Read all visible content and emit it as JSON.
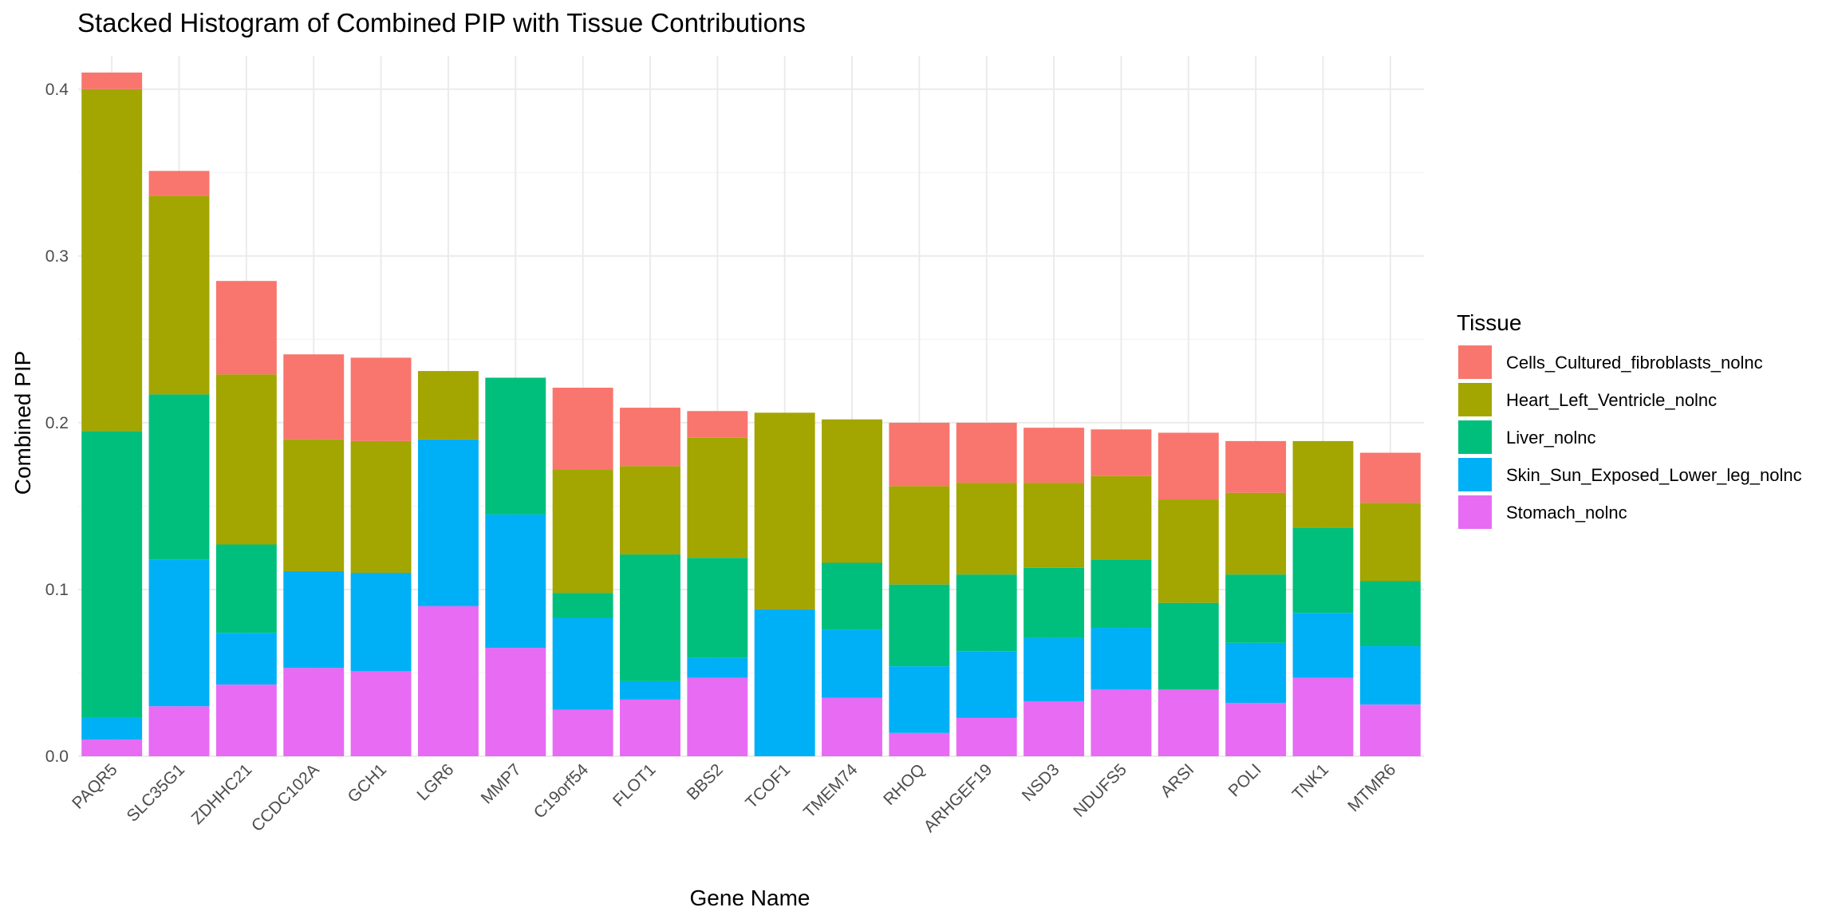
{
  "chart_data": {
    "type": "bar",
    "stacked": true,
    "title": "Stacked Histogram of Combined PIP with Tissue Contributions",
    "xlabel": "Gene Name",
    "ylabel": "Combined PIP",
    "ylim": [
      0,
      0.42
    ],
    "yticks": [
      0.0,
      0.1,
      0.2,
      0.3,
      0.4
    ],
    "ytick_labels": [
      "0.0",
      "0.1",
      "0.2",
      "0.3",
      "0.4"
    ],
    "grid": true,
    "legend": {
      "title": "Tissue",
      "placement": "right",
      "order": [
        "Cells_Cultured_fibroblasts_nolnc",
        "Heart_Left_Ventricle_nolnc",
        "Liver_nolnc",
        "Skin_Sun_Exposed_Lower_leg_nolnc",
        "Stomach_nolnc"
      ]
    },
    "categories": [
      "PAQR5",
      "SLC35G1",
      "ZDHHC21",
      "CCDC102A",
      "GCH1",
      "LGR6",
      "MMP7",
      "C19orf54",
      "FLOT1",
      "BBS2",
      "TCOF1",
      "TMEM74",
      "RHOQ",
      "ARHGEF19",
      "NSD3",
      "NDUFS5",
      "ARSI",
      "POLI",
      "TNK1",
      "MTMR6"
    ],
    "series": [
      {
        "name": "Stomach_nolnc",
        "color": "#E76BF3",
        "values": [
          0.01,
          0.03,
          0.043,
          0.053,
          0.051,
          0.09,
          0.065,
          0.028,
          0.034,
          0.047,
          0.0,
          0.035,
          0.014,
          0.023,
          0.033,
          0.04,
          0.04,
          0.032,
          0.047,
          0.031
        ]
      },
      {
        "name": "Skin_Sun_Exposed_Lower_leg_nolnc",
        "color": "#00B0F6",
        "values": [
          0.013,
          0.088,
          0.031,
          0.058,
          0.059,
          0.1,
          0.08,
          0.055,
          0.011,
          0.012,
          0.088,
          0.041,
          0.04,
          0.04,
          0.038,
          0.037,
          0.0,
          0.036,
          0.039,
          0.035
        ]
      },
      {
        "name": "Liver_nolnc",
        "color": "#00BF7D",
        "values": [
          0.172,
          0.099,
          0.053,
          0.0,
          0.0,
          0.0,
          0.082,
          0.015,
          0.076,
          0.06,
          0.0,
          0.04,
          0.049,
          0.046,
          0.042,
          0.041,
          0.052,
          0.041,
          0.051,
          0.039
        ]
      },
      {
        "name": "Heart_Left_Ventricle_nolnc",
        "color": "#A3A500",
        "values": [
          0.205,
          0.119,
          0.102,
          0.079,
          0.079,
          0.041,
          0.0,
          0.074,
          0.053,
          0.072,
          0.118,
          0.086,
          0.059,
          0.055,
          0.051,
          0.05,
          0.062,
          0.049,
          0.052,
          0.047
        ]
      },
      {
        "name": "Cells_Cultured_fibroblasts_nolnc",
        "color": "#F8766D",
        "values": [
          0.01,
          0.015,
          0.056,
          0.051,
          0.05,
          0.0,
          0.0,
          0.049,
          0.035,
          0.016,
          0.0,
          0.0,
          0.038,
          0.036,
          0.033,
          0.028,
          0.04,
          0.031,
          0.0,
          0.03
        ]
      }
    ]
  }
}
